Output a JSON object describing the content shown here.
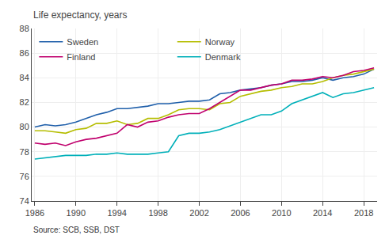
{
  "chart_data": {
    "type": "line",
    "ylabel": "Life expectancy, years",
    "annotations": [
      "Source: SCB, SSB, DST"
    ],
    "x": [
      1986,
      1987,
      1988,
      1989,
      1990,
      1991,
      1992,
      1993,
      1994,
      1995,
      1996,
      1997,
      1998,
      1999,
      2000,
      2001,
      2002,
      2003,
      2004,
      2005,
      2006,
      2007,
      2008,
      2009,
      2010,
      2011,
      2012,
      2013,
      2014,
      2015,
      2016,
      2017,
      2018,
      2019
    ],
    "series": [
      {
        "name": "Sweden",
        "color": "#1f5faa",
        "values": [
          80.0,
          80.2,
          80.1,
          80.2,
          80.4,
          80.7,
          81.0,
          81.2,
          81.5,
          81.5,
          81.6,
          81.7,
          81.9,
          81.9,
          82.0,
          82.1,
          82.1,
          82.2,
          82.7,
          82.8,
          83.0,
          83.1,
          83.2,
          83.4,
          83.5,
          83.7,
          83.7,
          83.8,
          84.0,
          83.8,
          84.0,
          84.1,
          84.3,
          84.7
        ]
      },
      {
        "name": "Norway",
        "color": "#b5bd00",
        "values": [
          79.7,
          79.7,
          79.6,
          79.5,
          79.8,
          79.9,
          80.3,
          80.3,
          80.5,
          80.2,
          80.3,
          80.7,
          80.7,
          81.0,
          81.4,
          81.5,
          81.5,
          81.4,
          81.9,
          82.0,
          82.5,
          82.7,
          82.9,
          83.0,
          83.2,
          83.3,
          83.5,
          83.5,
          83.7,
          84.0,
          84.2,
          84.3,
          84.5,
          84.7
        ]
      },
      {
        "name": "Finland",
        "color": "#c0006d",
        "values": [
          78.7,
          78.6,
          78.7,
          78.5,
          78.8,
          79.0,
          79.1,
          79.3,
          79.5,
          80.2,
          80.0,
          80.4,
          80.5,
          80.8,
          81.0,
          81.1,
          81.1,
          81.5,
          82.0,
          82.5,
          83.0,
          83.0,
          83.2,
          83.4,
          83.5,
          83.8,
          83.8,
          83.9,
          84.1,
          84.0,
          84.2,
          84.5,
          84.6,
          84.8
        ]
      },
      {
        "name": "Denmark",
        "color": "#00b0b9",
        "values": [
          77.4,
          77.5,
          77.6,
          77.7,
          77.7,
          77.7,
          77.8,
          77.8,
          77.9,
          77.8,
          77.8,
          77.8,
          77.9,
          78.0,
          79.3,
          79.5,
          79.5,
          79.6,
          79.8,
          80.1,
          80.4,
          80.7,
          81.0,
          81.0,
          81.3,
          81.9,
          82.2,
          82.5,
          82.8,
          82.4,
          82.7,
          82.8,
          83.0,
          83.2
        ]
      }
    ],
    "xlim": [
      1985.7,
      2019.3
    ],
    "xticks": [
      1986,
      1990,
      1994,
      1998,
      2002,
      2006,
      2010,
      2014,
      2018
    ],
    "ylim": [
      74,
      88
    ],
    "yticks": [
      74,
      76,
      78,
      80,
      82,
      84,
      86,
      88
    ],
    "grid": true,
    "legend": "upper left"
  }
}
